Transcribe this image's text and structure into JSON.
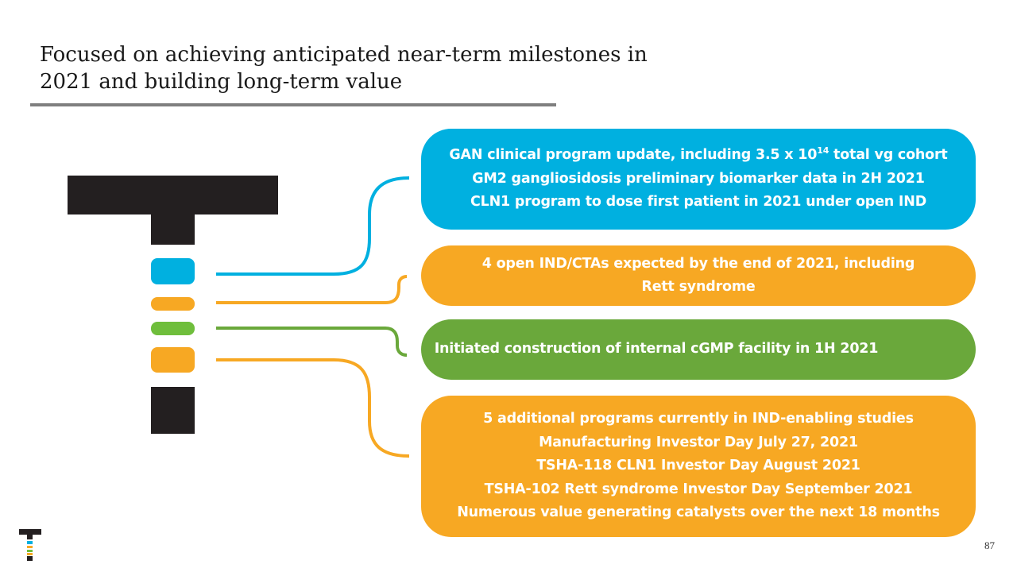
{
  "title": {
    "line1": "Focused on achieving anticipated near-term milestones in",
    "line2": "2021 and building long-term value"
  },
  "colors": {
    "blue": "#00b0e0",
    "orange": "#f7a823",
    "green": "#6aa83b",
    "dark": "#231f20",
    "rule": "#7f7f7f"
  },
  "boxes": {
    "blue": {
      "line1_pre": "GAN clinical program update, including 3.5 x 10",
      "line1_sup": "14",
      "line1_post": " total vg cohort",
      "line2": "GM2 gangliosidosis preliminary biomarker data in 2H 2021",
      "line3": "CLN1 program to dose first patient in 2021 under open IND"
    },
    "orange1": {
      "line1": "4 open IND/CTAs expected by the end of 2021, including",
      "line2": "Rett syndrome"
    },
    "green": {
      "line1": "Initiated construction of internal cGMP facility in 1H 2021"
    },
    "orange2": {
      "line1": "5 additional programs currently in IND-enabling studies",
      "line2": "Manufacturing Investor Day July 27, 2021",
      "line3": "TSHA-118 CLN1 Investor Day August 2021",
      "line4": "TSHA-102 Rett syndrome Investor Day  September 2021",
      "line5": "Numerous value generating catalysts over the next 18 months"
    }
  },
  "page_number": "87"
}
